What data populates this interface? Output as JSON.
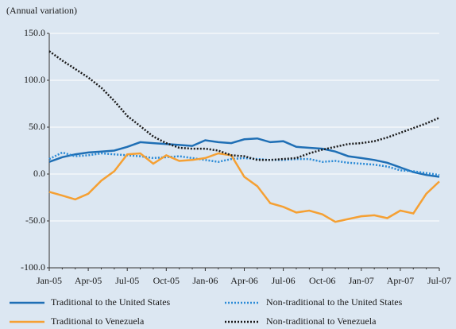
{
  "chart_data": {
    "type": "line",
    "y_label": "(Annual variation)",
    "categories": [
      "Jan-05",
      null,
      null,
      "Apr-05",
      null,
      null,
      "Jul-05",
      null,
      null,
      "Oct-05",
      null,
      null,
      "Jan-06",
      null,
      null,
      "Apr-06",
      null,
      null,
      "Jul-06",
      null,
      null,
      "Oct-06",
      null,
      null,
      "Jan-07",
      null,
      null,
      "Apr-07",
      null,
      null,
      "Jul-07"
    ],
    "ylim": [
      -100,
      150
    ],
    "yticks": [
      {
        "value": -100,
        "label": "-100.0"
      },
      {
        "value": -50,
        "label": "-50.0"
      },
      {
        "value": 0,
        "label": "0.0"
      },
      {
        "value": 50,
        "label": "50.0"
      },
      {
        "value": 100,
        "label": "100.0"
      },
      {
        "value": 150,
        "label": "150.0"
      }
    ],
    "grid": true,
    "series": [
      {
        "name": "Traditional to the United States",
        "color": "#1f6fb5",
        "style": "solid",
        "values": [
          13,
          18,
          21,
          23,
          24,
          25,
          29,
          34,
          33,
          32,
          31,
          30,
          36,
          34,
          33,
          37,
          38,
          34,
          35,
          29,
          28,
          27,
          24,
          19,
          17,
          15,
          12,
          7,
          2,
          -1,
          -3
        ]
      },
      {
        "name": "Non-traditional to the United States",
        "color": "#2a8ad6",
        "style": "dotted",
        "values": [
          16,
          23,
          19,
          20,
          22,
          21,
          20,
          19,
          17,
          18,
          19,
          17,
          15,
          13,
          16,
          17,
          16,
          15,
          15,
          16,
          16,
          13,
          14,
          12,
          11,
          10,
          8,
          4,
          3,
          1,
          -1
        ]
      },
      {
        "name": "Traditional to Venezuela",
        "color": "#f5a033",
        "style": "solid",
        "values": [
          -19,
          -23,
          -27,
          -21,
          -7,
          3,
          21,
          22,
          11,
          20,
          14,
          15,
          17,
          22,
          20,
          -3,
          -13,
          -31,
          -35,
          -41,
          -39,
          -43,
          -51,
          -48,
          -45,
          -44,
          -47,
          -39,
          -42,
          -21,
          -8
        ]
      },
      {
        "name": "Non-traditional to Venezuela",
        "color": "#1a1a1a",
        "style": "dotted",
        "values": [
          131,
          121,
          112,
          103,
          92,
          78,
          62,
          51,
          40,
          33,
          28,
          27,
          27,
          25,
          20,
          19,
          15,
          15,
          16,
          17,
          22,
          26,
          29,
          32,
          33,
          35,
          39,
          44,
          49,
          54,
          60
        ]
      }
    ]
  }
}
